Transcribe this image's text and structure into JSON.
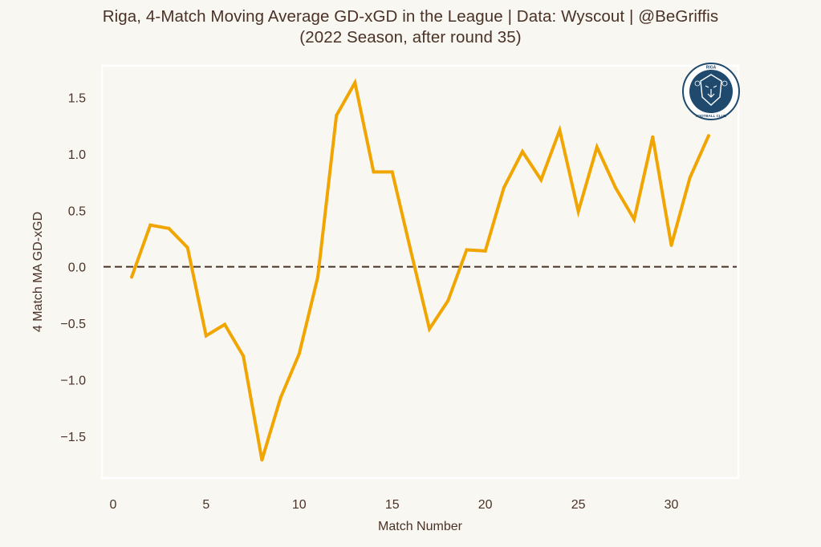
{
  "title": {
    "line1": "Riga, 4-Match Moving Average GD-xGD in the League  |  Data: Wyscout  |  @BeGriffis",
    "line2": "(2022 Season, after round 35)"
  },
  "logo": {
    "icon": "riga-fc-lion-crest-icon",
    "top_text": "RIGA",
    "bottom_text": "FOOTBALL CLUB",
    "color": "#1f4a6e"
  },
  "colors": {
    "background": "#f9f7f2",
    "plot_border": "#ffffff",
    "line": "#f0a500",
    "zero_line": "#4a3226",
    "text": "#4a3226"
  },
  "chart_data": {
    "type": "line",
    "title": "Riga, 4-Match Moving Average GD-xGD in the League  |  Data: Wyscout  |  @BeGriffis",
    "subtitle": "(2022 Season, after round 35)",
    "xlabel": "Match Number",
    "ylabel": "4 Match MA GD-xGD",
    "xlim": [
      -0.6,
      33.6
    ],
    "ylim": [
      -1.87,
      1.78
    ],
    "xticks": [
      0,
      5,
      10,
      15,
      20,
      25,
      30
    ],
    "xtick_labels": [
      "0",
      "5",
      "10",
      "15",
      "20",
      "25",
      "30"
    ],
    "yticks": [
      1.5,
      1.0,
      0.5,
      0.0,
      -0.5,
      -1.0,
      -1.5
    ],
    "ytick_labels": [
      "1.5",
      "1.0",
      "0.5",
      "0.0",
      "−0.5",
      "−1.0",
      "−1.5"
    ],
    "grid": false,
    "legend": "none",
    "reference_line": {
      "y": 0.0,
      "style": "dashed"
    },
    "series": [
      {
        "name": "4 Match MA GD-xGD",
        "x": [
          1,
          2,
          3,
          4,
          5,
          6,
          7,
          8,
          9,
          10,
          11,
          12,
          13,
          14,
          15,
          16,
          17,
          18,
          19,
          20,
          21,
          22,
          23,
          24,
          25,
          26,
          27,
          28,
          29,
          30,
          31,
          32
        ],
        "y": [
          -0.09,
          0.37,
          0.34,
          0.17,
          -0.61,
          -0.51,
          -0.79,
          -1.71,
          -1.16,
          -0.77,
          -0.09,
          1.34,
          1.63,
          0.84,
          0.84,
          0.14,
          -0.55,
          -0.3,
          0.15,
          0.14,
          0.7,
          1.02,
          0.77,
          1.21,
          0.49,
          1.06,
          0.7,
          0.42,
          1.15,
          0.19,
          0.79,
          1.16
        ]
      }
    ]
  }
}
